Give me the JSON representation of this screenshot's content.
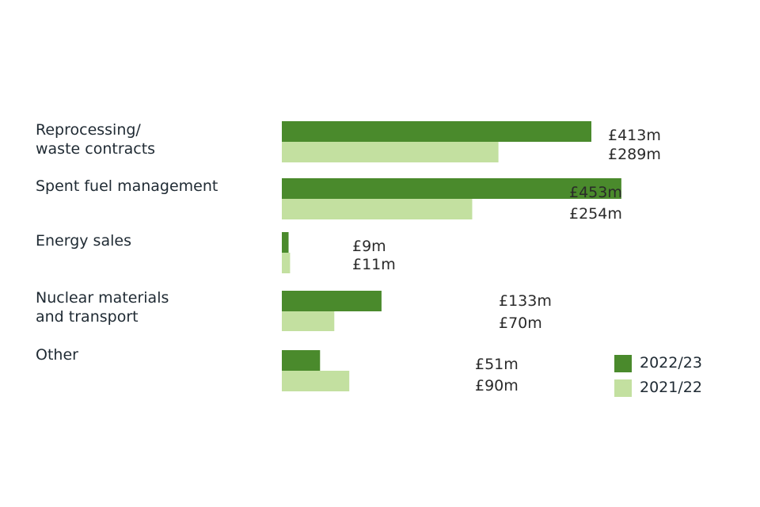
{
  "chart_data": {
    "type": "bar",
    "orientation": "horizontal",
    "categories": [
      [
        "Reprocessing/",
        "waste contracts"
      ],
      [
        "Spent fuel management"
      ],
      [
        "Energy sales"
      ],
      [
        "Nuclear materials",
        "and transport"
      ],
      [
        "Other"
      ]
    ],
    "series": [
      {
        "name": "2022/23",
        "color": "#4a8a2c",
        "values": [
          413,
          453,
          9,
          133,
          51
        ],
        "labels": [
          "£413m",
          "£453m",
          "£9m",
          "£133m",
          "£51m"
        ]
      },
      {
        "name": "2021/22",
        "color": "#c3e0a0",
        "values": [
          289,
          254,
          11,
          70,
          90
        ],
        "labels": [
          "£289m",
          "£254m",
          "£11m",
          "£70m",
          "£90m"
        ]
      }
    ],
    "legend_position": "bottom-right",
    "grid": false,
    "title": "",
    "xlabel": "",
    "ylabel": ""
  }
}
